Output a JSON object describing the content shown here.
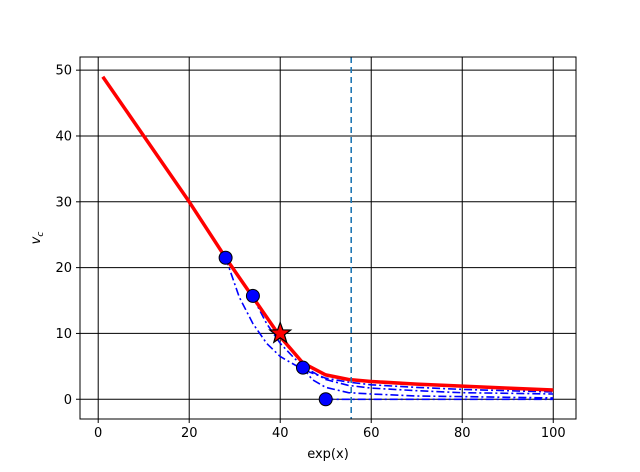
{
  "chart_data": {
    "type": "line",
    "xlabel": "exp(x)",
    "ylabel": "v",
    "ylabel_subscript": "c",
    "xlim": [
      -4,
      105
    ],
    "ylim": [
      -3,
      52
    ],
    "grid": true,
    "x_ticks": [
      0,
      20,
      40,
      60,
      80,
      100
    ],
    "y_ticks": [
      0,
      10,
      20,
      30,
      40,
      50
    ],
    "vline": {
      "x": 55.6,
      "color": "#1f77b4",
      "style": "dashed"
    },
    "series": [
      {
        "role": "envelope",
        "color": "#ff0000",
        "style": "solid",
        "x": [
          1,
          20,
          28,
          34,
          40,
          45,
          50,
          55,
          60,
          70,
          80,
          90,
          100
        ],
        "y": [
          49,
          30,
          21.5,
          15.5,
          9.5,
          5.5,
          3.7,
          3.0,
          2.7,
          2.3,
          2.0,
          1.7,
          1.4
        ]
      },
      {
        "role": "branch",
        "color": "#0000ff",
        "style": "dashdot",
        "x": [
          28,
          31,
          34,
          37,
          40,
          45,
          50,
          55,
          60,
          70,
          80,
          90,
          100
        ],
        "y": [
          21.5,
          15.5,
          11.5,
          8.5,
          6.5,
          4.5,
          3.2,
          2.6,
          2.2,
          1.8,
          1.5,
          1.3,
          1.1
        ]
      },
      {
        "role": "branch",
        "color": "#0000ff",
        "style": "dashdot",
        "x": [
          34,
          37,
          40,
          43,
          45,
          50,
          55,
          60,
          70,
          80,
          90,
          100
        ],
        "y": [
          15.5,
          11.5,
          8.5,
          6.3,
          5.0,
          3.0,
          2.1,
          1.7,
          1.3,
          1.0,
          0.9,
          0.8
        ]
      },
      {
        "role": "branch",
        "color": "#0000ff",
        "style": "dashdot",
        "x": [
          45,
          47,
          50,
          55,
          60,
          70,
          80,
          90,
          100
        ],
        "y": [
          4.8,
          3.0,
          1.8,
          1.0,
          0.8,
          0.5,
          0.4,
          0.3,
          0.2
        ]
      },
      {
        "role": "branch",
        "color": "#0000ff",
        "style": "dashdot",
        "x": [
          50,
          60,
          70,
          80,
          90,
          100
        ],
        "y": [
          0,
          0,
          0,
          0,
          0,
          0
        ]
      }
    ],
    "markers": [
      {
        "x": 28,
        "y": 21.5,
        "shape": "circle"
      },
      {
        "x": 34,
        "y": 15.7,
        "shape": "circle"
      },
      {
        "x": 45,
        "y": 4.8,
        "shape": "circle"
      },
      {
        "x": 50,
        "y": 0,
        "shape": "circle"
      },
      {
        "x": 40,
        "y": 10,
        "shape": "star"
      }
    ],
    "colors": {
      "envelope": "#ff0000",
      "branch": "#0000ff",
      "marker_fill": "#0000ff",
      "vline": "#1f77b4"
    }
  }
}
